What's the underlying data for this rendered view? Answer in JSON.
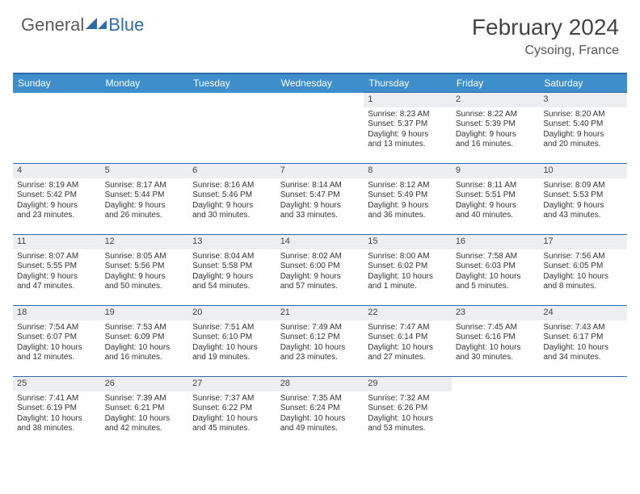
{
  "logo": {
    "general": "General",
    "blue": "Blue"
  },
  "title": "February 2024",
  "location": "Cysoing, France",
  "weekdays": [
    "Sunday",
    "Monday",
    "Tuesday",
    "Wednesday",
    "Thursday",
    "Friday",
    "Saturday"
  ],
  "colors": {
    "header_bg": "#3d8ecb",
    "header_border": "#2d6ca8",
    "daynum_bg": "#eceeef",
    "text": "#333333"
  },
  "weeks": [
    [
      null,
      null,
      null,
      null,
      {
        "n": "1",
        "sunrise": "Sunrise: 8:23 AM",
        "sunset": "Sunset: 5:37 PM",
        "day1": "Daylight: 9 hours",
        "day2": "and 13 minutes."
      },
      {
        "n": "2",
        "sunrise": "Sunrise: 8:22 AM",
        "sunset": "Sunset: 5:39 PM",
        "day1": "Daylight: 9 hours",
        "day2": "and 16 minutes."
      },
      {
        "n": "3",
        "sunrise": "Sunrise: 8:20 AM",
        "sunset": "Sunset: 5:40 PM",
        "day1": "Daylight: 9 hours",
        "day2": "and 20 minutes."
      }
    ],
    [
      {
        "n": "4",
        "sunrise": "Sunrise: 8:19 AM",
        "sunset": "Sunset: 5:42 PM",
        "day1": "Daylight: 9 hours",
        "day2": "and 23 minutes."
      },
      {
        "n": "5",
        "sunrise": "Sunrise: 8:17 AM",
        "sunset": "Sunset: 5:44 PM",
        "day1": "Daylight: 9 hours",
        "day2": "and 26 minutes."
      },
      {
        "n": "6",
        "sunrise": "Sunrise: 8:16 AM",
        "sunset": "Sunset: 5:46 PM",
        "day1": "Daylight: 9 hours",
        "day2": "and 30 minutes."
      },
      {
        "n": "7",
        "sunrise": "Sunrise: 8:14 AM",
        "sunset": "Sunset: 5:47 PM",
        "day1": "Daylight: 9 hours",
        "day2": "and 33 minutes."
      },
      {
        "n": "8",
        "sunrise": "Sunrise: 8:12 AM",
        "sunset": "Sunset: 5:49 PM",
        "day1": "Daylight: 9 hours",
        "day2": "and 36 minutes."
      },
      {
        "n": "9",
        "sunrise": "Sunrise: 8:11 AM",
        "sunset": "Sunset: 5:51 PM",
        "day1": "Daylight: 9 hours",
        "day2": "and 40 minutes."
      },
      {
        "n": "10",
        "sunrise": "Sunrise: 8:09 AM",
        "sunset": "Sunset: 5:53 PM",
        "day1": "Daylight: 9 hours",
        "day2": "and 43 minutes."
      }
    ],
    [
      {
        "n": "11",
        "sunrise": "Sunrise: 8:07 AM",
        "sunset": "Sunset: 5:55 PM",
        "day1": "Daylight: 9 hours",
        "day2": "and 47 minutes."
      },
      {
        "n": "12",
        "sunrise": "Sunrise: 8:05 AM",
        "sunset": "Sunset: 5:56 PM",
        "day1": "Daylight: 9 hours",
        "day2": "and 50 minutes."
      },
      {
        "n": "13",
        "sunrise": "Sunrise: 8:04 AM",
        "sunset": "Sunset: 5:58 PM",
        "day1": "Daylight: 9 hours",
        "day2": "and 54 minutes."
      },
      {
        "n": "14",
        "sunrise": "Sunrise: 8:02 AM",
        "sunset": "Sunset: 6:00 PM",
        "day1": "Daylight: 9 hours",
        "day2": "and 57 minutes."
      },
      {
        "n": "15",
        "sunrise": "Sunrise: 8:00 AM",
        "sunset": "Sunset: 6:02 PM",
        "day1": "Daylight: 10 hours",
        "day2": "and 1 minute."
      },
      {
        "n": "16",
        "sunrise": "Sunrise: 7:58 AM",
        "sunset": "Sunset: 6:03 PM",
        "day1": "Daylight: 10 hours",
        "day2": "and 5 minutes."
      },
      {
        "n": "17",
        "sunrise": "Sunrise: 7:56 AM",
        "sunset": "Sunset: 6:05 PM",
        "day1": "Daylight: 10 hours",
        "day2": "and 8 minutes."
      }
    ],
    [
      {
        "n": "18",
        "sunrise": "Sunrise: 7:54 AM",
        "sunset": "Sunset: 6:07 PM",
        "day1": "Daylight: 10 hours",
        "day2": "and 12 minutes."
      },
      {
        "n": "19",
        "sunrise": "Sunrise: 7:53 AM",
        "sunset": "Sunset: 6:09 PM",
        "day1": "Daylight: 10 hours",
        "day2": "and 16 minutes."
      },
      {
        "n": "20",
        "sunrise": "Sunrise: 7:51 AM",
        "sunset": "Sunset: 6:10 PM",
        "day1": "Daylight: 10 hours",
        "day2": "and 19 minutes."
      },
      {
        "n": "21",
        "sunrise": "Sunrise: 7:49 AM",
        "sunset": "Sunset: 6:12 PM",
        "day1": "Daylight: 10 hours",
        "day2": "and 23 minutes."
      },
      {
        "n": "22",
        "sunrise": "Sunrise: 7:47 AM",
        "sunset": "Sunset: 6:14 PM",
        "day1": "Daylight: 10 hours",
        "day2": "and 27 minutes."
      },
      {
        "n": "23",
        "sunrise": "Sunrise: 7:45 AM",
        "sunset": "Sunset: 6:16 PM",
        "day1": "Daylight: 10 hours",
        "day2": "and 30 minutes."
      },
      {
        "n": "24",
        "sunrise": "Sunrise: 7:43 AM",
        "sunset": "Sunset: 6:17 PM",
        "day1": "Daylight: 10 hours",
        "day2": "and 34 minutes."
      }
    ],
    [
      {
        "n": "25",
        "sunrise": "Sunrise: 7:41 AM",
        "sunset": "Sunset: 6:19 PM",
        "day1": "Daylight: 10 hours",
        "day2": "and 38 minutes."
      },
      {
        "n": "26",
        "sunrise": "Sunrise: 7:39 AM",
        "sunset": "Sunset: 6:21 PM",
        "day1": "Daylight: 10 hours",
        "day2": "and 42 minutes."
      },
      {
        "n": "27",
        "sunrise": "Sunrise: 7:37 AM",
        "sunset": "Sunset: 6:22 PM",
        "day1": "Daylight: 10 hours",
        "day2": "and 45 minutes."
      },
      {
        "n": "28",
        "sunrise": "Sunrise: 7:35 AM",
        "sunset": "Sunset: 6:24 PM",
        "day1": "Daylight: 10 hours",
        "day2": "and 49 minutes."
      },
      {
        "n": "29",
        "sunrise": "Sunrise: 7:32 AM",
        "sunset": "Sunset: 6:26 PM",
        "day1": "Daylight: 10 hours",
        "day2": "and 53 minutes."
      },
      null,
      null
    ]
  ]
}
